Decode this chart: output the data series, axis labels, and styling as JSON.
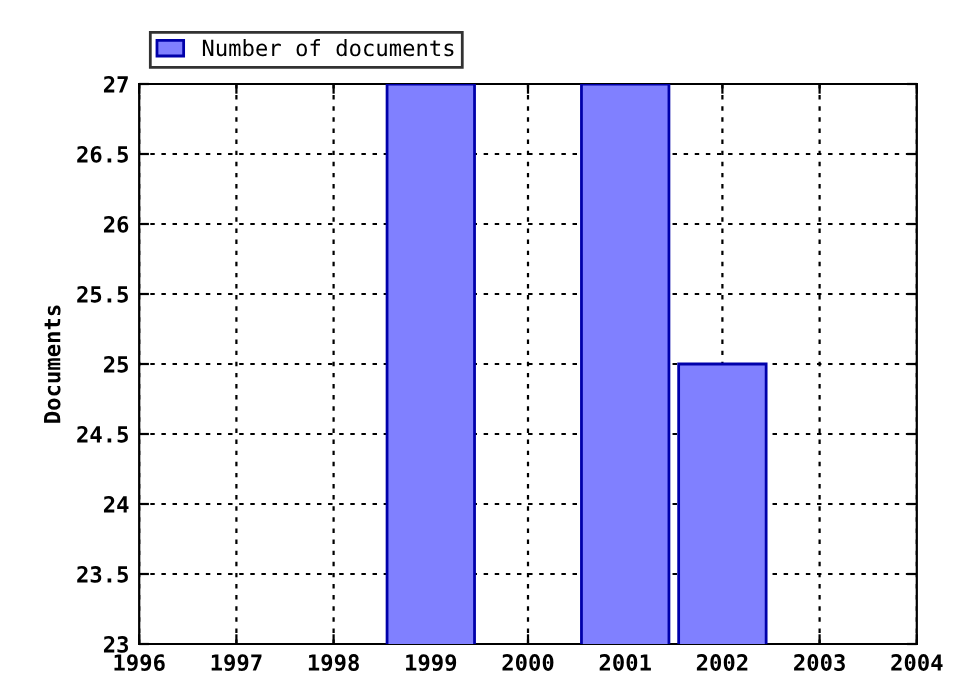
{
  "chart_data": {
    "type": "bar",
    "ylabel": "Documents",
    "x": [
      1999,
      2001,
      2002
    ],
    "series": [
      {
        "name": "Number of documents",
        "color": "#8080ff",
        "values": [
          27,
          27,
          25
        ]
      }
    ],
    "xlim": [
      1996,
      2004
    ],
    "xticks": [
      1996,
      1997,
      1998,
      1999,
      2000,
      2001,
      2002,
      2003,
      2004
    ],
    "ylim": [
      23,
      27
    ],
    "yticks": [
      23,
      23.5,
      24,
      24.5,
      25,
      25.5,
      26,
      26.5,
      27
    ],
    "grid": true,
    "legend": "top left"
  }
}
